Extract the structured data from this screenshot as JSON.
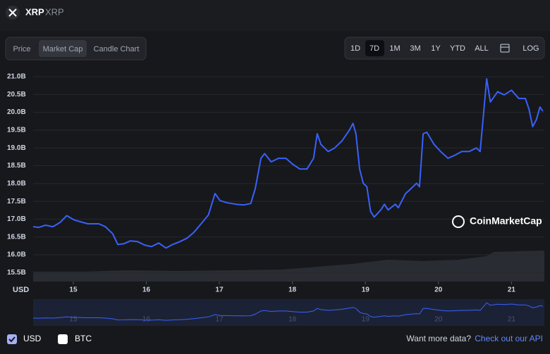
{
  "header": {
    "symbol": "XRP",
    "name": "XRP"
  },
  "tabs": [
    "Price",
    "Market Cap",
    "Candle Chart"
  ],
  "ranges": [
    "1D",
    "7D",
    "1M",
    "3M",
    "1Y",
    "YTD",
    "ALL",
    "LOG"
  ],
  "legend": [
    "USD",
    "BTC"
  ],
  "footer": {
    "text": "Want more data?",
    "link": "Check out our API"
  },
  "watermark": "CoinMarketCap",
  "chart_data": {
    "type": "line",
    "color": "#3861fb",
    "y_label": "USD",
    "x": [
      14.45,
      14.53,
      14.62,
      14.72,
      14.82,
      14.91,
      15.01,
      15.11,
      15.2,
      15.35,
      15.44,
      15.54,
      15.61,
      15.69,
      15.78,
      15.88,
      15.98,
      16.07,
      16.17,
      16.27,
      16.36,
      16.46,
      16.56,
      16.65,
      16.75,
      16.85,
      16.94,
      17.01,
      17.11,
      17.23,
      17.33,
      17.43,
      17.49,
      17.57,
      17.62,
      17.71,
      17.81,
      17.91,
      18.0,
      18.1,
      18.2,
      18.29,
      18.34,
      18.39,
      18.49,
      18.58,
      18.68,
      18.78,
      18.83,
      18.87,
      18.92,
      18.97,
      19.02,
      19.07,
      19.12,
      19.21,
      19.26,
      19.31,
      19.41,
      19.45,
      19.55,
      19.6,
      19.7,
      19.74,
      19.79,
      19.84,
      19.94,
      20.03,
      20.13,
      20.23,
      20.32,
      20.42,
      20.52,
      20.57,
      20.61,
      20.66,
      20.71,
      20.81,
      20.9,
      21.0,
      21.1,
      21.19,
      21.24,
      21.29,
      21.34,
      21.39,
      21.43
    ],
    "values": [
      16.79,
      16.77,
      16.83,
      16.79,
      16.91,
      17.1,
      16.98,
      16.92,
      16.87,
      16.87,
      16.79,
      16.59,
      16.29,
      16.31,
      16.39,
      16.37,
      16.27,
      16.23,
      16.33,
      16.19,
      16.29,
      16.37,
      16.47,
      16.63,
      16.87,
      17.12,
      17.72,
      17.52,
      17.46,
      17.42,
      17.4,
      17.44,
      17.85,
      18.71,
      18.84,
      18.61,
      18.71,
      18.71,
      18.55,
      18.41,
      18.41,
      18.71,
      19.4,
      19.1,
      18.9,
      19.0,
      19.2,
      19.5,
      19.69,
      19.4,
      18.41,
      18.01,
      17.91,
      17.22,
      17.06,
      17.26,
      17.42,
      17.26,
      17.42,
      17.32,
      17.72,
      17.81,
      18.01,
      17.91,
      19.4,
      19.44,
      19.1,
      18.9,
      18.71,
      18.8,
      18.9,
      18.9,
      19.0,
      18.9,
      19.79,
      20.94,
      20.29,
      20.58,
      20.49,
      20.62,
      20.39,
      20.39,
      20.09,
      19.6,
      19.79,
      20.15,
      20.03
    ],
    "xlim": [
      14.45,
      21.45
    ],
    "xticks": [
      15,
      16,
      17,
      18,
      19,
      20,
      21
    ],
    "ylim": [
      15.25,
      21.0
    ],
    "yticks": [
      {
        "value": 15.5,
        "label": "15.5B"
      },
      {
        "value": 16.0,
        "label": "16.0B"
      },
      {
        "value": 16.5,
        "label": "16.5B"
      },
      {
        "value": 17.0,
        "label": "17.0B"
      },
      {
        "value": 17.5,
        "label": "17.5B"
      },
      {
        "value": 18.0,
        "label": "18.0B"
      },
      {
        "value": 18.5,
        "label": "18.5B"
      },
      {
        "value": 19.0,
        "label": "19.0B"
      },
      {
        "value": 19.5,
        "label": "19.5B"
      },
      {
        "value": 20.0,
        "label": "20.0B"
      },
      {
        "value": 20.5,
        "label": "20.5B"
      },
      {
        "value": 21.0,
        "label": "21.0B"
      }
    ],
    "grid": true
  }
}
